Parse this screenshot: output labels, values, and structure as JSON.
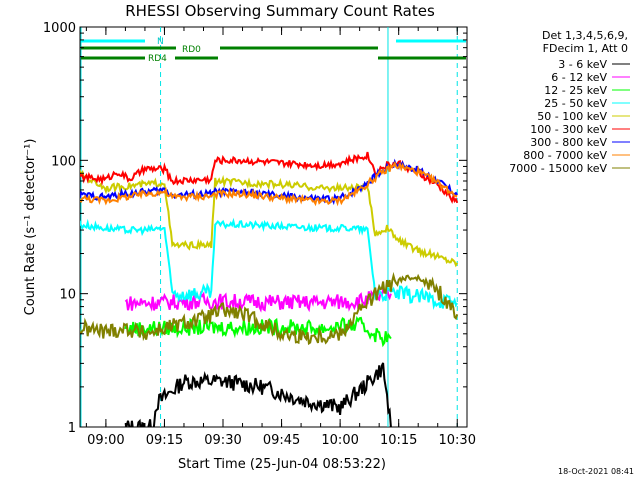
{
  "chart_data": {
    "type": "line",
    "title": "RHESSI Observing Summary Count Rates",
    "xlabel": "Start Time (25-Jun-04 08:53:22)",
    "ylabel": "Count Rate (s⁻¹ detector⁻¹)",
    "yscale": "log",
    "ylim": [
      1,
      1000
    ],
    "xlim": [
      "08:53:22",
      "10:32:30"
    ],
    "x_ticks": [
      "09:00",
      "09:15",
      "09:30",
      "09:45",
      "10:00",
      "10:15",
      "10:30"
    ],
    "y_ticks": [
      "1",
      "10",
      "100",
      "1000"
    ],
    "legend_position": "right",
    "legend_header": [
      "Det 1,3,4,5,6,9,",
      "FDecim 1, Att 0"
    ],
    "timestamp": "18-Oct-2021 08:41",
    "flags": {
      "night_label": "N",
      "rd0_label": "RD0",
      "rd4_label": "RD4"
    },
    "markers": {
      "dashed_times": [
        "09:14:00",
        "10:30:00"
      ],
      "solid_times": [
        "08:53:22",
        "10:12:00"
      ]
    },
    "series": [
      {
        "name": "3 - 6 keV",
        "color": "#000000",
        "points": [
          [
            "09:05",
            1
          ],
          [
            "09:12",
            1
          ],
          [
            "09:13",
            1.5
          ],
          [
            "09:20",
            2.2
          ],
          [
            "09:30",
            2.2
          ],
          [
            "09:40",
            2.0
          ],
          [
            "09:50",
            1.6
          ],
          [
            "10:00",
            1.4
          ],
          [
            "10:06",
            2.0
          ],
          [
            "10:11",
            2.8
          ],
          [
            "10:13",
            1
          ]
        ]
      },
      {
        "name": "6 - 12 keV",
        "color": "#ff00ff",
        "points": [
          [
            "09:05",
            8.5
          ],
          [
            "09:15",
            8.6
          ],
          [
            "09:25",
            8.8
          ],
          [
            "09:35",
            8.7
          ],
          [
            "09:45",
            8.6
          ],
          [
            "09:55",
            8.6
          ],
          [
            "10:05",
            8.8
          ],
          [
            "10:10",
            9.5
          ],
          [
            "10:13",
            10
          ]
        ]
      },
      {
        "name": "12 - 25 keV",
        "color": "#00ff00",
        "points": [
          [
            "09:05",
            5.5
          ],
          [
            "09:15",
            5.5
          ],
          [
            "09:25",
            5.6
          ],
          [
            "09:35",
            5.6
          ],
          [
            "09:45",
            5.6
          ],
          [
            "09:55",
            5.5
          ],
          [
            "10:05",
            5.8
          ],
          [
            "10:10",
            4.8
          ],
          [
            "10:13",
            4.6
          ]
        ]
      },
      {
        "name": "25 - 50 keV",
        "color": "#00ffff",
        "points": [
          [
            "08:53",
            33
          ],
          [
            "09:00",
            31
          ],
          [
            "09:05",
            30
          ],
          [
            "09:10",
            30
          ],
          [
            "09:15",
            31
          ],
          [
            "09:17",
            10
          ],
          [
            "09:27",
            10
          ],
          [
            "09:28",
            33
          ],
          [
            "09:35",
            33
          ],
          [
            "09:45",
            32
          ],
          [
            "09:55",
            31
          ],
          [
            "10:03",
            31
          ],
          [
            "10:07",
            30
          ],
          [
            "10:09",
            10
          ],
          [
            "10:15",
            10
          ],
          [
            "10:20",
            9.5
          ],
          [
            "10:25",
            9.0
          ],
          [
            "10:30",
            8.5
          ]
        ]
      },
      {
        "name": "50 - 100 keV",
        "color": "#cccc00",
        "points": [
          [
            "08:53",
            80
          ],
          [
            "09:00",
            62
          ],
          [
            "09:05",
            64
          ],
          [
            "09:10",
            66
          ],
          [
            "09:15",
            68
          ],
          [
            "09:17",
            23
          ],
          [
            "09:27",
            23
          ],
          [
            "09:28",
            70
          ],
          [
            "09:35",
            68
          ],
          [
            "09:45",
            66
          ],
          [
            "09:55",
            62
          ],
          [
            "10:03",
            62
          ],
          [
            "10:07",
            63
          ],
          [
            "10:09",
            28
          ],
          [
            "10:12",
            31
          ],
          [
            "10:15",
            25
          ],
          [
            "10:20",
            21
          ],
          [
            "10:25",
            19
          ],
          [
            "10:30",
            17
          ]
        ]
      },
      {
        "name": "100 - 300 keV",
        "color": "#ff0000",
        "points": [
          [
            "08:53",
            75
          ],
          [
            "09:00",
            72
          ],
          [
            "09:03",
            82
          ],
          [
            "09:06",
            72
          ],
          [
            "09:10",
            86
          ],
          [
            "09:15",
            86
          ],
          [
            "09:17",
            70
          ],
          [
            "09:27",
            72
          ],
          [
            "09:28",
            100
          ],
          [
            "09:35",
            100
          ],
          [
            "09:45",
            95
          ],
          [
            "09:55",
            92
          ],
          [
            "10:00",
            95
          ],
          [
            "10:05",
            105
          ],
          [
            "10:07",
            110
          ],
          [
            "10:09",
            82
          ],
          [
            "10:12",
            92
          ],
          [
            "10:15",
            95
          ],
          [
            "10:20",
            80
          ],
          [
            "10:25",
            65
          ],
          [
            "10:30",
            48
          ]
        ]
      },
      {
        "name": "300 - 800 keV",
        "color": "#0000ff",
        "points": [
          [
            "08:53",
            55
          ],
          [
            "09:00",
            53
          ],
          [
            "09:05",
            56
          ],
          [
            "09:10",
            58
          ],
          [
            "09:15",
            60
          ],
          [
            "09:17",
            55
          ],
          [
            "09:27",
            56
          ],
          [
            "09:28",
            58
          ],
          [
            "09:35",
            58
          ],
          [
            "09:45",
            54
          ],
          [
            "09:55",
            51
          ],
          [
            "10:00",
            52
          ],
          [
            "10:05",
            62
          ],
          [
            "10:10",
            80
          ],
          [
            "10:14",
            95
          ],
          [
            "10:20",
            85
          ],
          [
            "10:25",
            70
          ],
          [
            "10:30",
            55
          ]
        ]
      },
      {
        "name": "800 - 7000 keV",
        "color": "#ff8000",
        "points": [
          [
            "08:53",
            52
          ],
          [
            "09:00",
            50
          ],
          [
            "09:05",
            53
          ],
          [
            "09:10",
            56
          ],
          [
            "09:15",
            58
          ],
          [
            "09:17",
            53
          ],
          [
            "09:27",
            54
          ],
          [
            "09:28",
            56
          ],
          [
            "09:35",
            56
          ],
          [
            "09:45",
            52
          ],
          [
            "09:55",
            49
          ],
          [
            "10:00",
            50
          ],
          [
            "10:05",
            60
          ],
          [
            "10:10",
            78
          ],
          [
            "10:14",
            92
          ],
          [
            "10:20",
            82
          ],
          [
            "10:25",
            68
          ],
          [
            "10:30",
            54
          ]
        ]
      },
      {
        "name": "7000 - 15000 keV",
        "color": "#808000",
        "points": [
          [
            "08:53",
            5.5
          ],
          [
            "09:00",
            5.2
          ],
          [
            "09:05",
            5.5
          ],
          [
            "09:10",
            5.0
          ],
          [
            "09:15",
            5.5
          ],
          [
            "09:20",
            6.0
          ],
          [
            "09:25",
            6.5
          ],
          [
            "09:30",
            7.5
          ],
          [
            "09:35",
            7.0
          ],
          [
            "09:40",
            6.0
          ],
          [
            "09:45",
            5.0
          ],
          [
            "09:50",
            4.8
          ],
          [
            "09:55",
            4.8
          ],
          [
            "10:00",
            5.0
          ],
          [
            "10:05",
            7.5
          ],
          [
            "10:10",
            10.5
          ],
          [
            "10:15",
            12.5
          ],
          [
            "10:20",
            13.5
          ],
          [
            "10:25",
            10.5
          ],
          [
            "10:30",
            7.0
          ]
        ]
      }
    ]
  }
}
